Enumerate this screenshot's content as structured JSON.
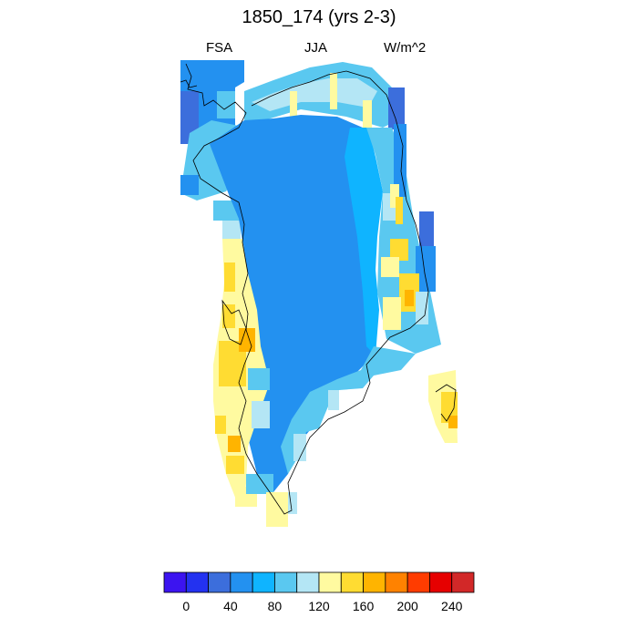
{
  "figure": {
    "title": "1850_174 (yrs 2-3)",
    "variable": "FSA",
    "season": "JJA",
    "units": "W/m^2"
  },
  "colorbar": {
    "levels": [
      -20,
      0,
      20,
      40,
      60,
      80,
      100,
      120,
      140,
      160,
      180,
      200,
      220,
      240,
      260
    ],
    "tick_labels": [
      "0",
      "40",
      "80",
      "120",
      "160",
      "200",
      "240"
    ],
    "tick_values": [
      0,
      40,
      80,
      120,
      160,
      200,
      240
    ],
    "colors": [
      "#3c14f0",
      "#2332f0",
      "#3c6edc",
      "#2391f0",
      "#0fb4ff",
      "#5ac8f0",
      "#b4e6f5",
      "#fffaa0",
      "#ffdc32",
      "#ffb400",
      "#ff8200",
      "#ff3c00",
      "#e60000",
      "#d22828"
    ]
  },
  "map_data": {
    "region": "Greenland",
    "field": "FSA JJA mean, W/m^2",
    "dominant_interior_value": 70,
    "coastal_values_range": [
      60,
      200
    ]
  }
}
